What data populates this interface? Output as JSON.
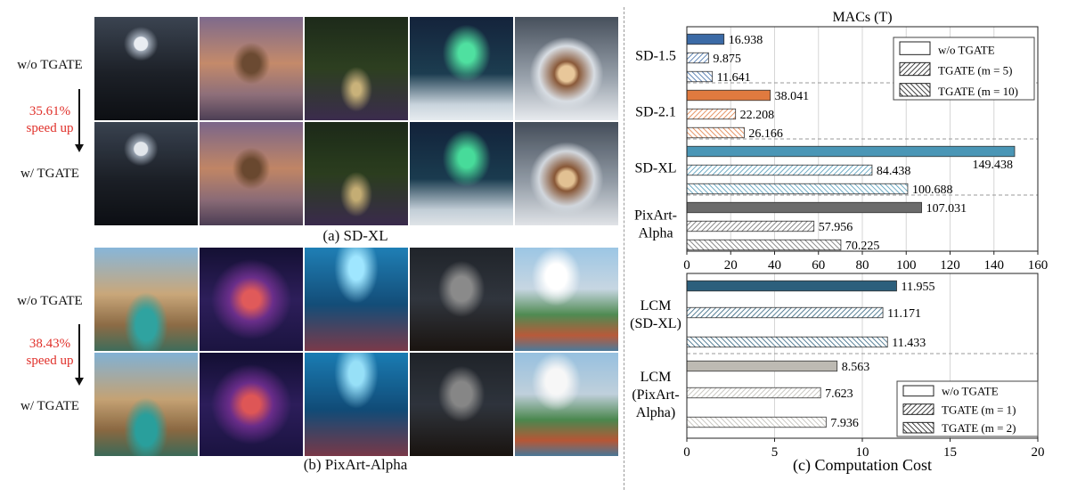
{
  "left": {
    "row_label_without": "w/o TGATE",
    "row_label_with": "w/ TGATE",
    "sdxl": {
      "caption": "(a) SD-XL",
      "speedup_value": "35.61%",
      "speedup_text": "speed up"
    },
    "pixart": {
      "caption": "(b) PixArt-Alpha",
      "speedup_value": "38.43%",
      "speedup_text": "speed up"
    }
  },
  "chart_data": [
    {
      "type": "bar",
      "orientation": "horizontal",
      "title": "MACs (T)",
      "xlim": [
        0,
        160
      ],
      "xticks": [
        0,
        20,
        40,
        60,
        80,
        100,
        120,
        140,
        160
      ],
      "grid": true,
      "legend_position": "top-right",
      "legend": [
        "w/o TGATE",
        "TGATE (m = 5)",
        "TGATE (m = 10)"
      ],
      "groups": [
        {
          "name": "SD-1.5",
          "color": "#3b6aa6",
          "values": [
            16.938,
            9.875,
            11.641
          ],
          "labels": [
            "16.938",
            "9.875",
            "11.641"
          ]
        },
        {
          "name": "SD-2.1",
          "color": "#e07a3f",
          "values": [
            38.041,
            22.208,
            26.166
          ],
          "labels": [
            "38.041",
            "22.208",
            "26.166"
          ]
        },
        {
          "name": "SD-XL",
          "color": "#4a96b6",
          "values": [
            149.438,
            84.438,
            100.688
          ],
          "labels": [
            "149.438",
            "84.438",
            "100.688"
          ]
        },
        {
          "name": "PixArt-Alpha",
          "name_lines": [
            "PixArt-",
            "Alpha"
          ],
          "color": "#6b6b6b",
          "values": [
            107.031,
            57.956,
            70.225
          ],
          "labels": [
            "107.031",
            "57.956",
            "70.225"
          ]
        }
      ]
    },
    {
      "type": "bar",
      "orientation": "horizontal",
      "title": "",
      "xlabel": "(c) Computation Cost",
      "xlim": [
        0,
        20
      ],
      "xticks": [
        0,
        5,
        10,
        15,
        20
      ],
      "grid": true,
      "legend_position": "bottom-right",
      "legend": [
        "w/o TGATE",
        "TGATE (m = 1)",
        "TGATE (m = 2)"
      ],
      "groups": [
        {
          "name": "LCM (SD-XL)",
          "name_lines": [
            "LCM",
            "(SD-XL)"
          ],
          "color": "#2c5f7c",
          "values": [
            11.955,
            11.171,
            11.433
          ],
          "labels": [
            "11.955",
            "11.171",
            "11.433"
          ]
        },
        {
          "name": "LCM (PixArt-Alpha)",
          "name_lines": [
            "LCM",
            "(PixArt-",
            "Alpha)"
          ],
          "color": "#bdbab3",
          "values": [
            8.563,
            7.623,
            7.936
          ],
          "labels": [
            "8.563",
            "7.623",
            "7.936"
          ]
        }
      ]
    }
  ]
}
